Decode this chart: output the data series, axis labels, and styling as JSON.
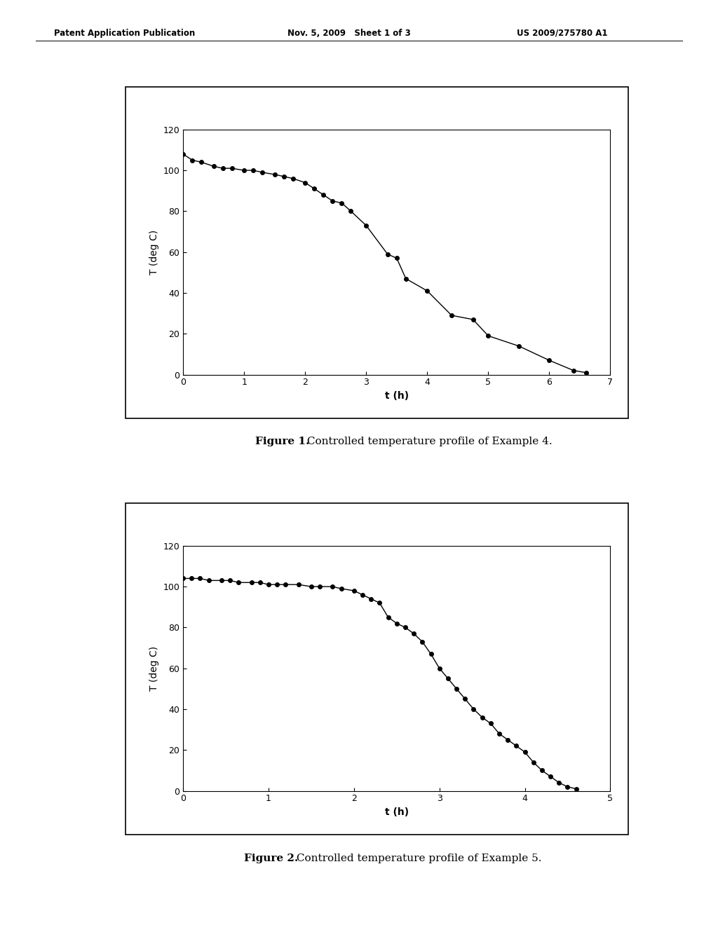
{
  "header_left": "Patent Application Publication",
  "header_mid": "Nov. 5, 2009   Sheet 1 of 3",
  "header_right": "US 2009/275780 A1",
  "fig1": {
    "title_bold": "Figure 1.",
    "title_rest": " Controlled temperature profile of Example 4.",
    "xlabel": "t (h)",
    "ylabel": "T (deg C)",
    "xlim": [
      0,
      7
    ],
    "ylim": [
      0,
      120
    ],
    "xticks": [
      0,
      1,
      2,
      3,
      4,
      5,
      6,
      7
    ],
    "yticks": [
      0,
      20,
      40,
      60,
      80,
      100,
      120
    ],
    "x": [
      0.0,
      0.15,
      0.3,
      0.5,
      0.65,
      0.8,
      1.0,
      1.15,
      1.3,
      1.5,
      1.65,
      1.8,
      2.0,
      2.15,
      2.3,
      2.45,
      2.6,
      2.75,
      3.0,
      3.35,
      3.5,
      3.65,
      4.0,
      4.4,
      4.75,
      5.0,
      5.5,
      6.0,
      6.4,
      6.6
    ],
    "y": [
      108,
      105,
      104,
      102,
      101,
      101,
      100,
      100,
      99,
      98,
      97,
      96,
      94,
      91,
      88,
      85,
      84,
      80,
      73,
      59,
      57,
      47,
      41,
      29,
      27,
      19,
      14,
      7,
      2,
      1
    ]
  },
  "fig2": {
    "title_bold": "Figure 2.",
    "title_rest": " Controlled temperature profile of Example 5.",
    "xlabel": "t (h)",
    "ylabel": "T (deg C)",
    "xlim": [
      0,
      5
    ],
    "ylim": [
      0,
      120
    ],
    "xticks": [
      0,
      1,
      2,
      3,
      4,
      5
    ],
    "yticks": [
      0,
      20,
      40,
      60,
      80,
      100,
      120
    ],
    "x": [
      0.0,
      0.1,
      0.2,
      0.3,
      0.45,
      0.55,
      0.65,
      0.8,
      0.9,
      1.0,
      1.1,
      1.2,
      1.35,
      1.5,
      1.6,
      1.75,
      1.85,
      2.0,
      2.1,
      2.2,
      2.3,
      2.4,
      2.5,
      2.6,
      2.7,
      2.8,
      2.9,
      3.0,
      3.1,
      3.2,
      3.3,
      3.4,
      3.5,
      3.6,
      3.7,
      3.8,
      3.9,
      4.0,
      4.1,
      4.2,
      4.3,
      4.4,
      4.5,
      4.6
    ],
    "y": [
      104,
      104,
      104,
      103,
      103,
      103,
      102,
      102,
      102,
      101,
      101,
      101,
      101,
      100,
      100,
      100,
      99,
      98,
      96,
      94,
      92,
      85,
      82,
      80,
      77,
      73,
      67,
      60,
      55,
      50,
      45,
      40,
      36,
      33,
      28,
      25,
      22,
      19,
      14,
      10,
      7,
      4,
      2,
      1
    ]
  },
  "line_color": "#000000",
  "marker": "o",
  "markersize": 4,
  "linewidth": 1.0,
  "bg_color": "#ffffff"
}
